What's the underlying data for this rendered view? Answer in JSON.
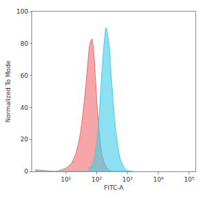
{
  "chart_data": {
    "type": "area",
    "x_label": "FITC-A",
    "y_label": "Normalized To Mode",
    "log": "x",
    "grid": false,
    "x": [
      1,
      2,
      5,
      7,
      10,
      15,
      20,
      25,
      30,
      40,
      50,
      60,
      70,
      80,
      100,
      120,
      150,
      200,
      250,
      300,
      400,
      500,
      600,
      800,
      1000,
      1500
    ],
    "series": [
      {
        "color": "#f06a6a",
        "values": [
          1,
          0.5,
          0,
          1,
          2,
          5,
          10,
          17,
          25,
          45,
          65,
          80,
          83,
          75,
          45,
          25,
          10,
          3,
          1,
          0,
          0,
          0,
          0,
          0,
          0,
          0
        ]
      },
      {
        "color": "#3fcbea",
        "values": [
          0,
          0,
          0,
          0,
          0,
          0,
          0,
          0,
          0,
          0,
          0,
          2,
          4,
          7,
          18,
          35,
          65,
          90,
          80,
          58,
          28,
          14,
          7,
          2,
          0.5,
          0
        ]
      }
    ],
    "xlim": [
      0.8,
      160000
    ],
    "xticks": [
      {
        "value": 10,
        "label": "10¹"
      },
      {
        "value": 100,
        "label": "10²"
      },
      {
        "value": 1000,
        "label": "10³"
      },
      {
        "value": 10000,
        "label": "10⁴"
      },
      {
        "value": 100000,
        "label": "10⁵"
      }
    ],
    "ylim": [
      0,
      100
    ],
    "yticks": [
      0,
      20,
      40,
      60,
      80,
      100
    ]
  }
}
